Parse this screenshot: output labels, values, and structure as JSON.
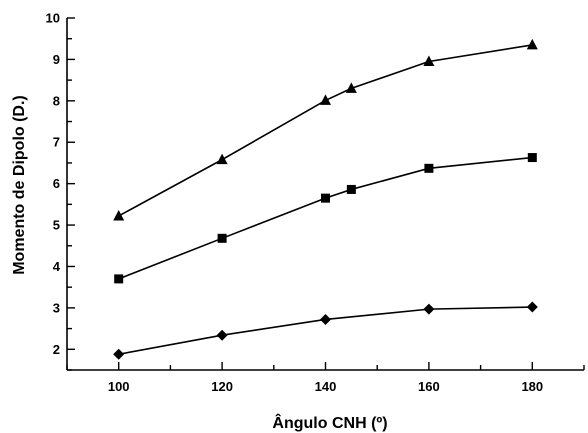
{
  "chart_data": {
    "type": "line",
    "title": "",
    "xlabel": "Ângulo CNH (º)",
    "ylabel": "Momento de Dipolo (D.)",
    "xlim": [
      90,
      190
    ],
    "ylim": [
      1.5,
      10
    ],
    "x_ticks": [
      100,
      120,
      140,
      160,
      180
    ],
    "y_ticks": [
      2,
      3,
      4,
      5,
      6,
      7,
      8,
      9,
      10
    ],
    "grid": false,
    "legend": "none",
    "series": [
      {
        "marker": "triangle",
        "points": [
          {
            "x": 100,
            "y": 5.22
          },
          {
            "x": 120,
            "y": 6.58
          },
          {
            "x": 140,
            "y": 8.01
          },
          {
            "x": 145,
            "y": 8.3
          },
          {
            "x": 160,
            "y": 8.95
          },
          {
            "x": 180,
            "y": 9.35
          }
        ]
      },
      {
        "marker": "square",
        "points": [
          {
            "x": 100,
            "y": 3.7
          },
          {
            "x": 120,
            "y": 4.68
          },
          {
            "x": 140,
            "y": 5.65
          },
          {
            "x": 145,
            "y": 5.86
          },
          {
            "x": 160,
            "y": 6.37
          },
          {
            "x": 180,
            "y": 6.63
          }
        ]
      },
      {
        "marker": "diamond",
        "points": [
          {
            "x": 100,
            "y": 1.88
          },
          {
            "x": 120,
            "y": 2.34
          },
          {
            "x": 140,
            "y": 2.72
          },
          {
            "x": 160,
            "y": 2.97
          },
          {
            "x": 180,
            "y": 3.02
          }
        ]
      }
    ]
  }
}
